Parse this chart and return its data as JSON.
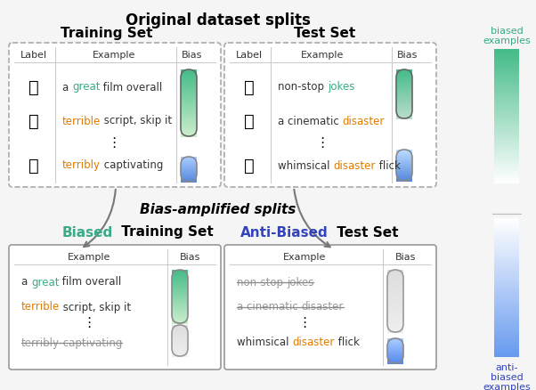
{
  "title": "Original dataset splits",
  "training_set_title": "Training Set",
  "test_set_title": "Test Set",
  "bias_amplified_label": "Bias-amplified splits",
  "biased_color": "#3aaa88",
  "anti_biased_color": "#3344bb",
  "orange_color": "#e07b00",
  "green_color": "#3aaa88",
  "bg_color": "#f5f5f5",
  "sidebar_green_top": "#44bb88",
  "sidebar_green_bot": "#ffffff",
  "sidebar_blue_top": "#ffffff",
  "sidebar_blue_bot": "#6699ee",
  "training_texts": [
    [
      [
        "a ",
        "#333333"
      ],
      [
        "great",
        "#3aaa88"
      ],
      [
        " film overall",
        "#333333"
      ]
    ],
    [
      [
        "terrible",
        "#e07b00"
      ],
      [
        " script, skip it",
        "#333333"
      ]
    ],
    [
      [
        "terribly",
        "#e07b00"
      ],
      [
        " captivating",
        "#333333"
      ]
    ]
  ],
  "training_labels": [
    "👍",
    "👎",
    "👍"
  ],
  "test_texts": [
    [
      [
        "non-stop ",
        "#333333"
      ],
      [
        "jokes",
        "#3aaa88"
      ]
    ],
    [
      [
        "a cinematic ",
        "#333333"
      ],
      [
        "disaster",
        "#e07b00"
      ]
    ],
    [
      [
        "whimsical ",
        "#333333"
      ],
      [
        "disaster",
        "#e07b00"
      ],
      [
        " flick",
        "#333333"
      ]
    ]
  ],
  "test_labels": [
    "👍",
    "👎",
    "👍"
  ],
  "biased_texts": [
    [
      [
        "a ",
        "#333333"
      ],
      [
        "great",
        "#3aaa88"
      ],
      [
        " film overall",
        "#333333"
      ]
    ],
    [
      [
        "terrible",
        "#e07b00"
      ],
      [
        " script, skip it",
        "#333333"
      ]
    ],
    [
      [
        "terribly",
        "#e07b00"
      ],
      [
        " captivating",
        "#333333"
      ]
    ]
  ],
  "biased_strike": [
    false,
    false,
    true
  ],
  "anti_texts": [
    [
      [
        "non-stop ",
        "#333333"
      ],
      [
        "jokes",
        "#3aaa88"
      ]
    ],
    [
      [
        "a cinematic ",
        "#333333"
      ],
      [
        "disaster",
        "#e07b00"
      ]
    ],
    [
      [
        "whimsical ",
        "#333333"
      ],
      [
        "disaster",
        "#e07b00"
      ],
      [
        " flick",
        "#333333"
      ]
    ]
  ],
  "anti_strike": [
    true,
    true,
    false
  ]
}
